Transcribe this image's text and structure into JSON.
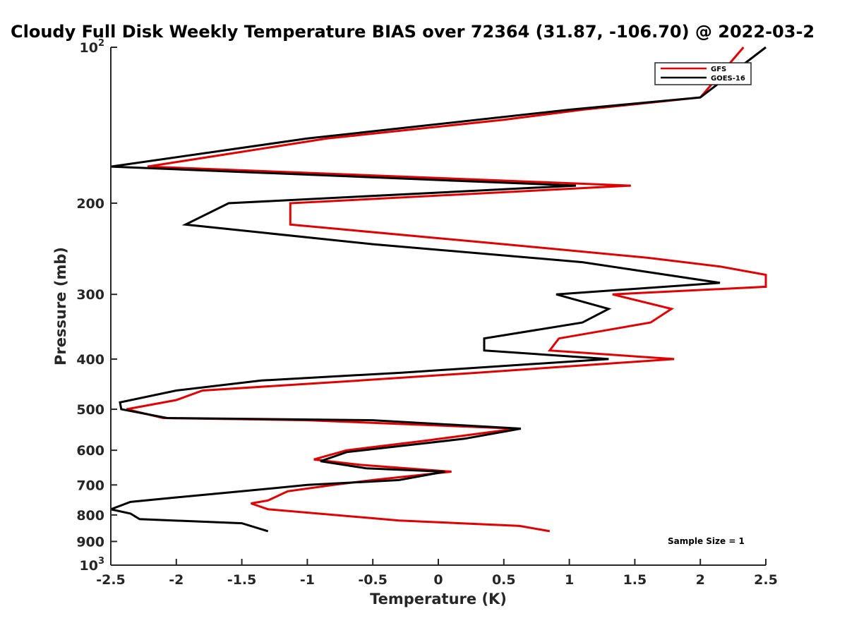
{
  "chart_data": {
    "type": "line",
    "title": "Cloudy Full Disk Weekly Temperature BIAS over 72364 (31.87, -106.70) @ 2022-03-2",
    "xlabel": "Temperature (K)",
    "ylabel": "Pressure (mb)",
    "xlim": [
      -2.5,
      2.5
    ],
    "ylim": [
      100,
      1000
    ],
    "y_scale": "log",
    "y_reversed": true,
    "grid": false,
    "x_ticks": [
      "-2.5",
      "-2",
      "-1.5",
      "-1",
      "-0.5",
      "0",
      "0.5",
      "1",
      "1.5",
      "2",
      "2.5"
    ],
    "y_ticks": [
      {
        "value": 100,
        "base": "10",
        "exp": "2"
      },
      {
        "value": 200,
        "label": "200"
      },
      {
        "value": 300,
        "label": "300"
      },
      {
        "value": 400,
        "label": "400"
      },
      {
        "value": 500,
        "label": "500"
      },
      {
        "value": 600,
        "label": "600"
      },
      {
        "value": 700,
        "label": "700"
      },
      {
        "value": 800,
        "label": "800"
      },
      {
        "value": 900,
        "label": "900"
      },
      {
        "value": 1000,
        "base": "10",
        "exp": "3"
      }
    ],
    "legend_position": "top-right",
    "series": [
      {
        "name": "GFS",
        "color": "#e00000",
        "points": [
          [
            2.33,
            100
          ],
          [
            2.0,
            125
          ],
          [
            1.1,
            132
          ],
          [
            0.5,
            138
          ],
          [
            -0.85,
            150
          ],
          [
            -2.22,
            170
          ],
          [
            1.47,
            185
          ],
          [
            -1.13,
            200
          ],
          [
            -1.13,
            220
          ],
          [
            0.5,
            240
          ],
          [
            1.6,
            255
          ],
          [
            2.15,
            265
          ],
          [
            2.5,
            275
          ],
          [
            2.5,
            290
          ],
          [
            1.33,
            300
          ],
          [
            1.78,
            320
          ],
          [
            1.62,
            340
          ],
          [
            0.92,
            365
          ],
          [
            0.85,
            385
          ],
          [
            1.8,
            400
          ],
          [
            0.3,
            425
          ],
          [
            -0.6,
            440
          ],
          [
            -1.8,
            460
          ],
          [
            -2.0,
            480
          ],
          [
            -2.38,
            500
          ],
          [
            -2.1,
            520
          ],
          [
            -1.0,
            525
          ],
          [
            0.6,
            545
          ],
          [
            -0.1,
            575
          ],
          [
            -0.7,
            600
          ],
          [
            -0.95,
            625
          ],
          [
            -0.6,
            640
          ],
          [
            0.1,
            660
          ],
          [
            -0.5,
            685
          ],
          [
            -0.8,
            700
          ],
          [
            -1.15,
            720
          ],
          [
            -1.3,
            750
          ],
          [
            -1.43,
            760
          ],
          [
            -1.3,
            780
          ],
          [
            -0.3,
            820
          ],
          [
            0.62,
            840
          ],
          [
            0.85,
            860
          ]
        ]
      },
      {
        "name": "GOES-16",
        "color": "#000000",
        "points": [
          [
            2.5,
            100
          ],
          [
            2.0,
            125
          ],
          [
            1.0,
            132
          ],
          [
            -1.0,
            150
          ],
          [
            -2.5,
            170
          ],
          [
            1.05,
            185
          ],
          [
            -1.6,
            200
          ],
          [
            -1.93,
            220
          ],
          [
            -0.5,
            240
          ],
          [
            1.1,
            260
          ],
          [
            2.15,
            285
          ],
          [
            0.9,
            300
          ],
          [
            1.3,
            320
          ],
          [
            1.1,
            340
          ],
          [
            0.35,
            365
          ],
          [
            0.35,
            385
          ],
          [
            1.3,
            400
          ],
          [
            -0.28,
            425
          ],
          [
            -1.35,
            440
          ],
          [
            -2.0,
            460
          ],
          [
            -2.43,
            485
          ],
          [
            -2.42,
            500
          ],
          [
            -2.07,
            520
          ],
          [
            -0.5,
            525
          ],
          [
            0.63,
            545
          ],
          [
            0.2,
            570
          ],
          [
            -0.7,
            605
          ],
          [
            -0.9,
            630
          ],
          [
            -0.55,
            650
          ],
          [
            0.05,
            660
          ],
          [
            -0.3,
            685
          ],
          [
            -1.0,
            700
          ],
          [
            -1.5,
            720
          ],
          [
            -2.0,
            740
          ],
          [
            -2.35,
            755
          ],
          [
            -2.5,
            780
          ],
          [
            -2.35,
            795
          ],
          [
            -2.28,
            815
          ],
          [
            -1.5,
            830
          ],
          [
            -1.3,
            860
          ]
        ]
      }
    ],
    "annotation": "Sample Size = 1"
  }
}
